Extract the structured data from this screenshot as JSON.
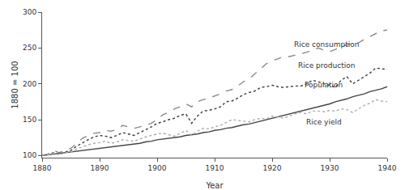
{
  "chart_data": {
    "type": "line",
    "x_label": "Year",
    "y_label": "1880 = 100",
    "x": [
      1880,
      1881,
      1882,
      1883,
      1884,
      1885,
      1886,
      1887,
      1888,
      1889,
      1890,
      1891,
      1892,
      1893,
      1894,
      1895,
      1896,
      1897,
      1898,
      1899,
      1900,
      1901,
      1902,
      1903,
      1904,
      1905,
      1906,
      1907,
      1908,
      1909,
      1910,
      1911,
      1912,
      1913,
      1914,
      1915,
      1916,
      1917,
      1918,
      1919,
      1920,
      1921,
      1922,
      1923,
      1924,
      1925,
      1926,
      1927,
      1928,
      1929,
      1930,
      1931,
      1932,
      1933,
      1934,
      1935,
      1936,
      1937,
      1938,
      1939,
      1940
    ],
    "series": [
      {
        "name": "Rice consumption",
        "color": "#8a8a8a",
        "line_style": "dash",
        "values": [
          100,
          102,
          107,
          104,
          108,
          110,
          117,
          124,
          128,
          131,
          132,
          135,
          134,
          136,
          142,
          140,
          138,
          140,
          142,
          145,
          150,
          157,
          160,
          165,
          168,
          172,
          168,
          175,
          178,
          180,
          183,
          186,
          190,
          192,
          197,
          203,
          207,
          214,
          222,
          228,
          232,
          235,
          238,
          238,
          240,
          242,
          244,
          247,
          250,
          247,
          245,
          248,
          252,
          254,
          258,
          257,
          262,
          266,
          270,
          274,
          275
        ]
      },
      {
        "name": "Rice production",
        "color": "#3a3a3a",
        "line_style": "dot",
        "values": [
          100,
          101,
          104,
          102,
          105,
          107,
          113,
          118,
          122,
          126,
          128,
          127,
          125,
          128,
          132,
          130,
          128,
          132,
          136,
          140,
          145,
          147,
          150,
          152,
          156,
          158,
          145,
          155,
          162,
          163,
          165,
          168,
          175,
          176,
          180,
          185,
          188,
          190,
          195,
          196,
          198,
          196,
          195,
          196,
          197,
          197,
          200,
          205,
          203,
          200,
          198,
          195,
          205,
          210,
          200,
          205,
          210,
          215,
          222,
          221,
          220
        ]
      },
      {
        "name": "Population",
        "color": "#444444",
        "line_style": "solid",
        "values": [
          100,
          101,
          102,
          103,
          104,
          105,
          106,
          107,
          108,
          109,
          110,
          111,
          112,
          113,
          114,
          115,
          116,
          117,
          119,
          120,
          122,
          123,
          124,
          125,
          126,
          128,
          129,
          130,
          132,
          133,
          135,
          136,
          138,
          139,
          141,
          143,
          144,
          146,
          148,
          150,
          152,
          154,
          156,
          158,
          160,
          162,
          164,
          166,
          168,
          170,
          172,
          175,
          177,
          179,
          182,
          184,
          186,
          189,
          191,
          193,
          196
        ]
      },
      {
        "name": "Rice yield",
        "color": "#ababab",
        "line_style": "dot",
        "values": [
          100,
          101,
          103,
          101,
          104,
          105,
          109,
          112,
          115,
          117,
          118,
          120,
          117,
          119,
          122,
          121,
          120,
          123,
          126,
          128,
          130,
          131,
          129,
          127,
          131,
          135,
          128,
          134,
          138,
          137,
          140,
          142,
          146,
          150,
          149,
          148,
          147,
          150,
          152,
          151,
          155,
          154,
          152,
          155,
          158,
          160,
          158,
          162,
          162,
          161,
          163,
          162,
          165,
          164,
          160,
          165,
          170,
          173,
          178,
          176,
          175
        ]
      }
    ],
    "annotations": [
      {
        "text": "Rice consumption",
        "x": 1929.5,
        "y": 255
      },
      {
        "text": "Rice production",
        "x": 1929.5,
        "y": 226
      },
      {
        "text": "Population",
        "x": 1929,
        "y": 198
      },
      {
        "text": "Rice yield",
        "x": 1929,
        "y": 147
      }
    ],
    "xlim": [
      1880,
      1940
    ],
    "xticks": [
      1880,
      1890,
      1900,
      1910,
      1920,
      1930,
      1940
    ],
    "ylim": [
      97,
      300
    ],
    "yticks": [
      100,
      150,
      200,
      250,
      300
    ],
    "grid": false
  }
}
